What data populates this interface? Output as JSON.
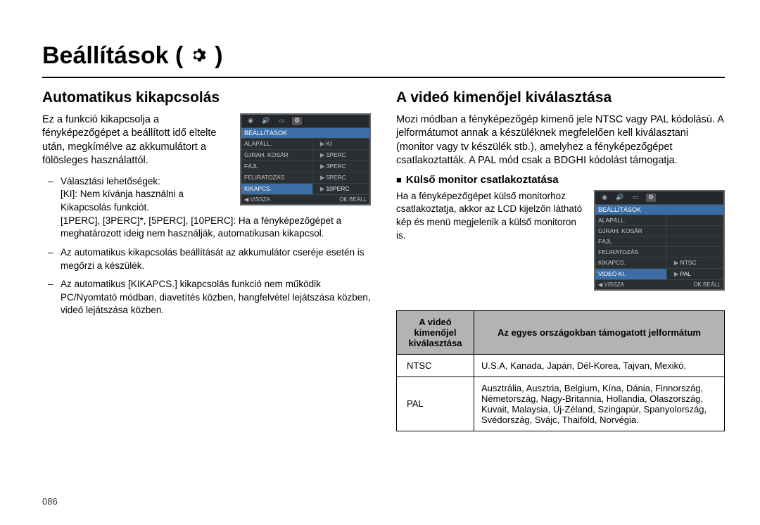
{
  "page": {
    "title": "Beállítások (",
    "title_suffix": ")",
    "number": "086"
  },
  "left": {
    "heading": "Automatikus kikapcsolás",
    "intro": "Ez a funkció kikapcsolja a fényképezőgépet a beállított idő eltelte után, megkímélve az akkumulátort a fölösleges használattól.",
    "bullets": [
      {
        "lead": "Választási lehetőségek:",
        "lines": [
          "[KI]: Nem kívánja használni a Kikapcsolás funkciót.",
          "[1PERC], [3PERC]*, [5PERC], [10PERC]: Ha a fényképezőgépet a meghatározott ideig nem használják, automatikusan kikapcsol."
        ]
      },
      {
        "text": "Az automatikus kikapcsolás beállítását az akkumulátor cseréje esetén is megőrzi a készülék."
      },
      {
        "text": "Az automatikus [KIKAPCS.] kikapcsolás funkció nem működik PC/Nyomtató módban, diavetítés közben, hangfelvétel lejátszása közben, videó lejátszása közben."
      }
    ],
    "ui": {
      "header": "BEÁLLÍTÁSOK",
      "rows": [
        {
          "l": "ALAPÁLL.",
          "r": "KI",
          "sel": false
        },
        {
          "l": "ÚJRAH. KOSÁR",
          "r": "1PERC",
          "sel": false
        },
        {
          "l": "FÁJL",
          "r": "3PERC",
          "sel": false
        },
        {
          "l": "FELIRATOZÁS",
          "r": "5PERC",
          "sel": false
        },
        {
          "l": "KIKAPCS.",
          "r": "10PERC",
          "sel": true
        }
      ],
      "bottom_left": "◀ VISSZA",
      "bottom_right": "OK  BEÁLL"
    }
  },
  "right": {
    "heading": "A videó kimenőjel kiválasztása",
    "intro": "Mozi módban a fényképezőgép kimenő jele NTSC vagy PAL kódolású. A jelformátumot annak a készüléknek megfelelően kell kiválasztani (monitor vagy tv készülék stb.), amelyhez a fényképezőgépet csatlakoztatták. A PAL mód csak a BDGHI kódolást támogatja.",
    "subhead": "Külső monitor csatlakoztatása",
    "subtext": "Ha a fényképezőgépet külső monitorhoz csatlakoztatja, akkor az LCD kijelzőn látható kép és menü megjelenik a külső monitoron is.",
    "ui": {
      "header": "BEÁLLÍTÁSOK",
      "rows": [
        {
          "l": "ALAPÁLL.",
          "r": "",
          "sel": false
        },
        {
          "l": "ÚJRAH. KOSÁR",
          "r": "",
          "sel": false
        },
        {
          "l": "FÁJL",
          "r": "",
          "sel": false
        },
        {
          "l": "FELIRATOZÁS",
          "r": "",
          "sel": false
        },
        {
          "l": "KIKAPCS.",
          "r": "NTSC",
          "sel": false
        },
        {
          "l": "VIDEÓ KI.",
          "r": "PAL",
          "sel": true
        }
      ],
      "bottom_left": "◀ VISSZA",
      "bottom_right": "OK  BEÁLL"
    },
    "table": {
      "col1": "A videó kimenőjel kiválasztása",
      "col2": "Az egyes országokban támogatott jelformátum",
      "rows": [
        {
          "a": "NTSC",
          "b": "U.S.A, Kanada, Japán, Dél-Korea, Tajvan, Mexikó."
        },
        {
          "a": "PAL",
          "b": "Ausztrália, Ausztria, Belgium, Kína, Dánia, Finnország, Németország, Nagy-Britannia, Hollandia, Olaszország, Kuvait, Malaysia, Új-Zéland, Szingapúr, Spanyolország, Svédország, Svájc, Thaiföld, Norvégia."
        }
      ]
    }
  },
  "colors": {
    "ui_bg": "#2a2f34",
    "ui_accent": "#3b6ea5",
    "table_header_bg": "#b3b3b3"
  }
}
